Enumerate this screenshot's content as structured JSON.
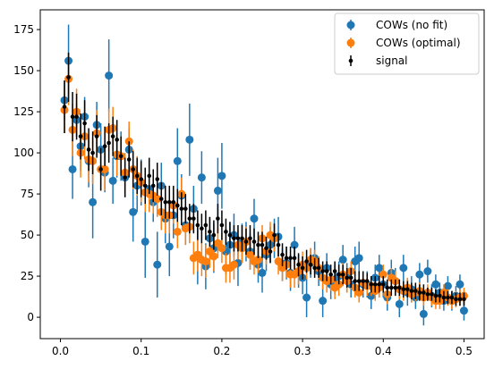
{
  "chart_data": {
    "type": "scatter",
    "title": "",
    "xlabel": "",
    "ylabel": "",
    "xlim": [
      -0.025,
      0.525
    ],
    "ylim": [
      -13,
      187
    ],
    "x_ticks": [
      0.0,
      0.1,
      0.2,
      0.3,
      0.4,
      0.5
    ],
    "x_tick_labels": [
      "0.0",
      "0.1",
      "0.2",
      "0.3",
      "0.4",
      "0.5"
    ],
    "y_ticks": [
      0,
      25,
      50,
      75,
      100,
      125,
      150,
      175
    ],
    "y_tick_labels": [
      "0",
      "25",
      "50",
      "75",
      "100",
      "125",
      "150",
      "175"
    ],
    "grid": false,
    "legend_position": "top-right",
    "series": [
      {
        "name": "COWs (no fit)",
        "color": "#1f77b4",
        "marker": "circle",
        "x": [
          0.005,
          0.01,
          0.015,
          0.02,
          0.025,
          0.03,
          0.035,
          0.04,
          0.045,
          0.05,
          0.055,
          0.06,
          0.065,
          0.07,
          0.075,
          0.08,
          0.085,
          0.09,
          0.095,
          0.1,
          0.105,
          0.11,
          0.115,
          0.12,
          0.125,
          0.13,
          0.135,
          0.14,
          0.145,
          0.15,
          0.155,
          0.16,
          0.165,
          0.17,
          0.175,
          0.18,
          0.185,
          0.19,
          0.195,
          0.2,
          0.205,
          0.21,
          0.215,
          0.22,
          0.225,
          0.23,
          0.235,
          0.24,
          0.245,
          0.25,
          0.255,
          0.26,
          0.265,
          0.27,
          0.275,
          0.28,
          0.285,
          0.29,
          0.295,
          0.3,
          0.305,
          0.31,
          0.315,
          0.32,
          0.325,
          0.33,
          0.335,
          0.34,
          0.345,
          0.35,
          0.355,
          0.36,
          0.365,
          0.37,
          0.375,
          0.38,
          0.385,
          0.39,
          0.395,
          0.4,
          0.405,
          0.41,
          0.415,
          0.42,
          0.425,
          0.43,
          0.435,
          0.44,
          0.445,
          0.45,
          0.455,
          0.46,
          0.465,
          0.47,
          0.475,
          0.48,
          0.485,
          0.49,
          0.495,
          0.5
        ],
        "y": [
          132,
          156,
          90,
          120,
          104,
          122,
          95,
          70,
          117,
          102,
          88,
          147,
          83,
          98,
          98,
          85,
          102,
          64,
          80,
          82,
          46,
          78,
          70,
          32,
          80,
          60,
          43,
          62,
          95,
          74,
          56,
          108,
          66,
          38,
          85,
          31,
          48,
          42,
          77,
          86,
          40,
          44,
          50,
          33,
          45,
          46,
          40,
          60,
          32,
          27,
          38,
          44,
          48,
          49,
          32,
          33,
          27,
          44,
          28,
          24,
          12,
          33,
          36,
          28,
          10,
          30,
          20,
          23,
          25,
          35,
          24,
          20,
          34,
          36,
          20,
          20,
          13,
          24,
          30,
          20,
          12,
          27,
          22,
          8,
          30,
          15,
          17,
          12,
          26,
          2,
          28,
          13,
          20,
          15,
          10,
          19,
          10,
          13,
          20,
          4
        ],
        "yerr": [
          12,
          22,
          18,
          10,
          15,
          12,
          16,
          22,
          14,
          16,
          12,
          22,
          14,
          13,
          15,
          12,
          13,
          18,
          16,
          14,
          22,
          14,
          12,
          20,
          14,
          15,
          18,
          14,
          20,
          13,
          12,
          22,
          14,
          18,
          16,
          14,
          13,
          15,
          20,
          20,
          14,
          14,
          13,
          14,
          12,
          12,
          11,
          12,
          11,
          12,
          10,
          11,
          12,
          12,
          10,
          10,
          11,
          11,
          10,
          10,
          12,
          9,
          10,
          9,
          10,
          9,
          9,
          9,
          9,
          9,
          9,
          8,
          9,
          10,
          8,
          8,
          8,
          8,
          8,
          8,
          8,
          8,
          8,
          8,
          8,
          8,
          8,
          7,
          7,
          7,
          7,
          7,
          6,
          6,
          6,
          6,
          6,
          6,
          6,
          6
        ]
      },
      {
        "name": "COWs (optimal)",
        "color": "#ff7f0e",
        "marker": "circle",
        "x": [
          0.005,
          0.01,
          0.015,
          0.02,
          0.025,
          0.03,
          0.035,
          0.04,
          0.045,
          0.05,
          0.055,
          0.06,
          0.065,
          0.07,
          0.075,
          0.08,
          0.085,
          0.09,
          0.095,
          0.1,
          0.105,
          0.11,
          0.115,
          0.12,
          0.125,
          0.13,
          0.135,
          0.14,
          0.145,
          0.15,
          0.155,
          0.16,
          0.165,
          0.17,
          0.175,
          0.18,
          0.185,
          0.19,
          0.195,
          0.2,
          0.205,
          0.21,
          0.215,
          0.22,
          0.225,
          0.23,
          0.235,
          0.24,
          0.245,
          0.25,
          0.255,
          0.26,
          0.265,
          0.27,
          0.275,
          0.28,
          0.285,
          0.29,
          0.295,
          0.3,
          0.305,
          0.31,
          0.315,
          0.32,
          0.325,
          0.33,
          0.335,
          0.34,
          0.345,
          0.35,
          0.355,
          0.36,
          0.365,
          0.37,
          0.375,
          0.38,
          0.385,
          0.39,
          0.395,
          0.4,
          0.405,
          0.41,
          0.415,
          0.42,
          0.425,
          0.43,
          0.435,
          0.44,
          0.445,
          0.45,
          0.455,
          0.46,
          0.465,
          0.47,
          0.475,
          0.48,
          0.485,
          0.49,
          0.495,
          0.5
        ],
        "y": [
          126,
          145,
          114,
          125,
          100,
          110,
          96,
          95,
          112,
          90,
          90,
          114,
          115,
          99,
          98,
          88,
          107,
          90,
          86,
          82,
          76,
          75,
          74,
          72,
          64,
          62,
          62,
          68,
          52,
          75,
          54,
          55,
          36,
          38,
          35,
          34,
          40,
          37,
          45,
          42,
          30,
          30,
          32,
          44,
          42,
          46,
          38,
          34,
          35,
          48,
          40,
          50,
          48,
          34,
          30,
          32,
          26,
          26,
          28,
          32,
          30,
          35,
          34,
          30,
          24,
          22,
          23,
          18,
          20,
          26,
          22,
          28,
          18,
          15,
          21,
          19,
          19,
          16,
          18,
          26,
          14,
          24,
          22,
          17,
          16,
          18,
          14,
          15,
          16,
          12,
          15,
          12,
          10,
          10,
          15,
          12,
          10,
          11,
          12,
          13
        ],
        "yerr": [
          14,
          16,
          16,
          14,
          15,
          14,
          14,
          14,
          14,
          13,
          13,
          13,
          13,
          13,
          12,
          12,
          12,
          12,
          12,
          12,
          12,
          11,
          11,
          11,
          11,
          11,
          11,
          11,
          10,
          10,
          10,
          10,
          10,
          10,
          10,
          10,
          10,
          9,
          9,
          9,
          9,
          9,
          9,
          9,
          9,
          9,
          9,
          8,
          8,
          8,
          8,
          8,
          8,
          8,
          8,
          8,
          8,
          8,
          8,
          8,
          7,
          7,
          7,
          7,
          7,
          7,
          7,
          7,
          7,
          7,
          7,
          6,
          6,
          6,
          6,
          6,
          6,
          6,
          6,
          6,
          6,
          6,
          6,
          6,
          6,
          6,
          5,
          5,
          5,
          5,
          5,
          5,
          5,
          5,
          5,
          5,
          5,
          5,
          5,
          5
        ]
      },
      {
        "name": "signal",
        "color": "#000000",
        "marker": "point",
        "x": [
          0.005,
          0.01,
          0.015,
          0.02,
          0.025,
          0.03,
          0.035,
          0.04,
          0.045,
          0.05,
          0.055,
          0.06,
          0.065,
          0.07,
          0.075,
          0.08,
          0.085,
          0.09,
          0.095,
          0.1,
          0.105,
          0.11,
          0.115,
          0.12,
          0.125,
          0.13,
          0.135,
          0.14,
          0.145,
          0.15,
          0.155,
          0.16,
          0.165,
          0.17,
          0.175,
          0.18,
          0.185,
          0.19,
          0.195,
          0.2,
          0.205,
          0.21,
          0.215,
          0.22,
          0.225,
          0.23,
          0.235,
          0.24,
          0.245,
          0.25,
          0.255,
          0.26,
          0.265,
          0.27,
          0.275,
          0.28,
          0.285,
          0.29,
          0.295,
          0.3,
          0.305,
          0.31,
          0.315,
          0.32,
          0.325,
          0.33,
          0.335,
          0.34,
          0.345,
          0.35,
          0.355,
          0.36,
          0.365,
          0.37,
          0.375,
          0.38,
          0.385,
          0.39,
          0.395,
          0.4,
          0.405,
          0.41,
          0.415,
          0.42,
          0.425,
          0.43,
          0.435,
          0.44,
          0.445,
          0.45,
          0.455,
          0.46,
          0.465,
          0.47,
          0.475,
          0.48,
          0.485,
          0.49,
          0.495,
          0.5
        ],
        "y": [
          128,
          146,
          122,
          122,
          110,
          118,
          102,
          100,
          110,
          90,
          104,
          106,
          110,
          108,
          98,
          85,
          96,
          90,
          86,
          84,
          80,
          86,
          80,
          84,
          72,
          70,
          70,
          70,
          68,
          66,
          66,
          60,
          60,
          56,
          54,
          56,
          52,
          50,
          60,
          56,
          52,
          50,
          48,
          48,
          48,
          46,
          48,
          46,
          44,
          44,
          42,
          40,
          50,
          44,
          38,
          36,
          36,
          36,
          32,
          30,
          34,
          32,
          30,
          30,
          28,
          28,
          26,
          28,
          26,
          26,
          24,
          24,
          22,
          22,
          22,
          22,
          20,
          20,
          20,
          20,
          18,
          18,
          18,
          18,
          17,
          17,
          16,
          16,
          15,
          15,
          14,
          14,
          13,
          13,
          12,
          12,
          12,
          11,
          11,
          11
        ],
        "yerr": [
          16,
          15,
          15,
          14,
          14,
          14,
          13,
          13,
          13,
          13,
          12,
          12,
          12,
          12,
          12,
          12,
          11,
          11,
          11,
          11,
          11,
          11,
          10,
          10,
          10,
          10,
          10,
          10,
          10,
          10,
          9,
          9,
          9,
          9,
          9,
          9,
          9,
          9,
          9,
          9,
          8,
          8,
          8,
          8,
          8,
          8,
          8,
          8,
          8,
          8,
          7,
          7,
          7,
          7,
          7,
          7,
          7,
          7,
          7,
          7,
          7,
          6,
          6,
          6,
          6,
          6,
          6,
          6,
          6,
          6,
          6,
          6,
          6,
          6,
          6,
          5,
          5,
          5,
          5,
          5,
          5,
          5,
          5,
          5,
          5,
          5,
          5,
          5,
          5,
          5,
          4,
          4,
          4,
          4,
          4,
          4,
          4,
          4,
          4,
          4
        ]
      }
    ]
  }
}
